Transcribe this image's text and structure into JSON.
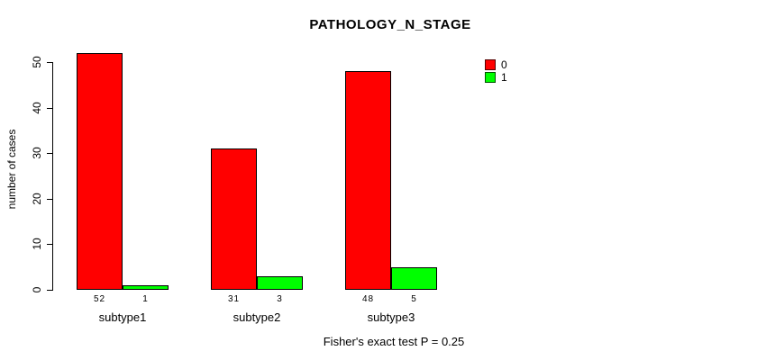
{
  "chart_data": {
    "type": "bar",
    "title": "PATHOLOGY_N_STAGE",
    "xlabel": "",
    "ylabel": "number of cases",
    "categories": [
      "subtype1",
      "subtype2",
      "subtype3"
    ],
    "series": [
      {
        "name": "0",
        "color": "#FF0000",
        "values": [
          52,
          31,
          48
        ]
      },
      {
        "name": "1",
        "color": "#00FF00",
        "values": [
          1,
          3,
          5
        ]
      }
    ],
    "value_labels_shown": true,
    "yticks": [
      0,
      10,
      20,
      30,
      40,
      50
    ],
    "ylim": [
      0,
      52
    ],
    "grid": false,
    "legend_position": "top-right",
    "footnote": "Fisher's exact test P = 0.25",
    "colors": {
      "bar_border": "#000000",
      "axis": "#000000",
      "text": "#000000",
      "background": "#FFFFFF"
    }
  }
}
